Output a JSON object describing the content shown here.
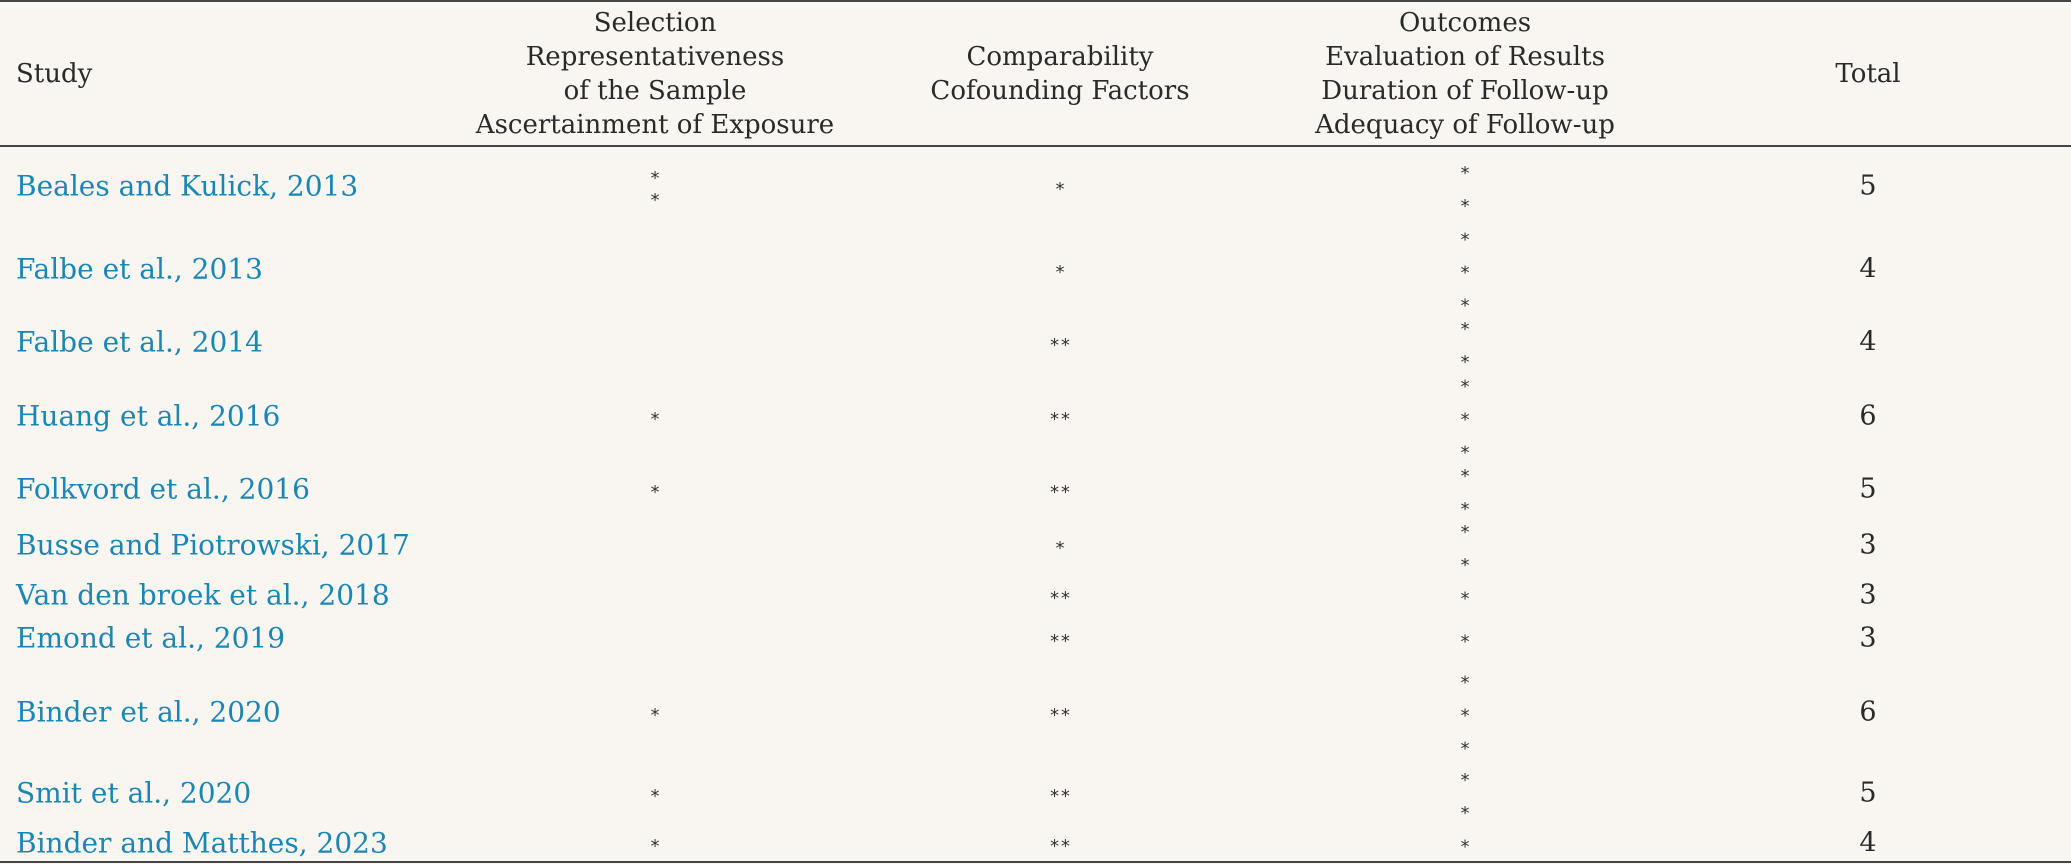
{
  "table": {
    "headers": {
      "study": "Study",
      "selection": [
        "Selection",
        "Representativeness",
        "of the Sample",
        "Ascertainment of Exposure"
      ],
      "comparability": [
        "Comparability",
        "Cofounding Factors"
      ],
      "outcomes": [
        "Outcomes",
        "Evaluation of Results",
        "Duration of Follow-up",
        "Adequacy of Follow-up"
      ],
      "total": "Total"
    },
    "rows": [
      {
        "study": "Beales and Kulick, 2013",
        "selection": [
          "*",
          "*"
        ],
        "comparability": [
          "*"
        ],
        "outcomes": [
          "*",
          "*"
        ],
        "total": "5"
      },
      {
        "study": "Falbe et al., 2013",
        "selection": [],
        "comparability": [
          "*"
        ],
        "outcomes": [
          "*",
          "*",
          "*"
        ],
        "total": "4"
      },
      {
        "study": "Falbe et al., 2014",
        "selection": [],
        "comparability": [
          "**"
        ],
        "outcomes": [
          "*",
          "*"
        ],
        "total": "4"
      },
      {
        "study": "Huang et al., 2016",
        "selection": [
          "*"
        ],
        "comparability": [
          "**"
        ],
        "outcomes": [
          "*",
          "*",
          "*"
        ],
        "total": "6"
      },
      {
        "study": "Folkvord et al., 2016",
        "selection": [
          "*"
        ],
        "comparability": [
          "**"
        ],
        "outcomes": [
          "*",
          "*"
        ],
        "total": "5"
      },
      {
        "study": "Busse and Piotrowski, 2017",
        "selection": [],
        "comparability": [
          "*"
        ],
        "outcomes": [
          "*",
          "*"
        ],
        "total": "3"
      },
      {
        "study": "Van den broek et al., 2018",
        "selection": [],
        "comparability": [
          "**"
        ],
        "outcomes": [
          "*"
        ],
        "total": "3"
      },
      {
        "study": "Emond et al., 2019",
        "selection": [],
        "comparability": [
          "**"
        ],
        "outcomes": [
          "*"
        ],
        "total": "3"
      },
      {
        "study": "Binder et al., 2020",
        "selection": [
          "*"
        ],
        "comparability": [
          "**"
        ],
        "outcomes": [
          "*",
          "*",
          "*"
        ],
        "total": "6"
      },
      {
        "study": "Smit et al., 2020",
        "selection": [
          "*"
        ],
        "comparability": [
          "**"
        ],
        "outcomes": [
          "*",
          "*"
        ],
        "total": "5"
      },
      {
        "study": "Binder and Matthes, 2023",
        "selection": [
          "*"
        ],
        "comparability": [
          "**"
        ],
        "outcomes": [
          "*"
        ],
        "total": "4"
      }
    ]
  }
}
